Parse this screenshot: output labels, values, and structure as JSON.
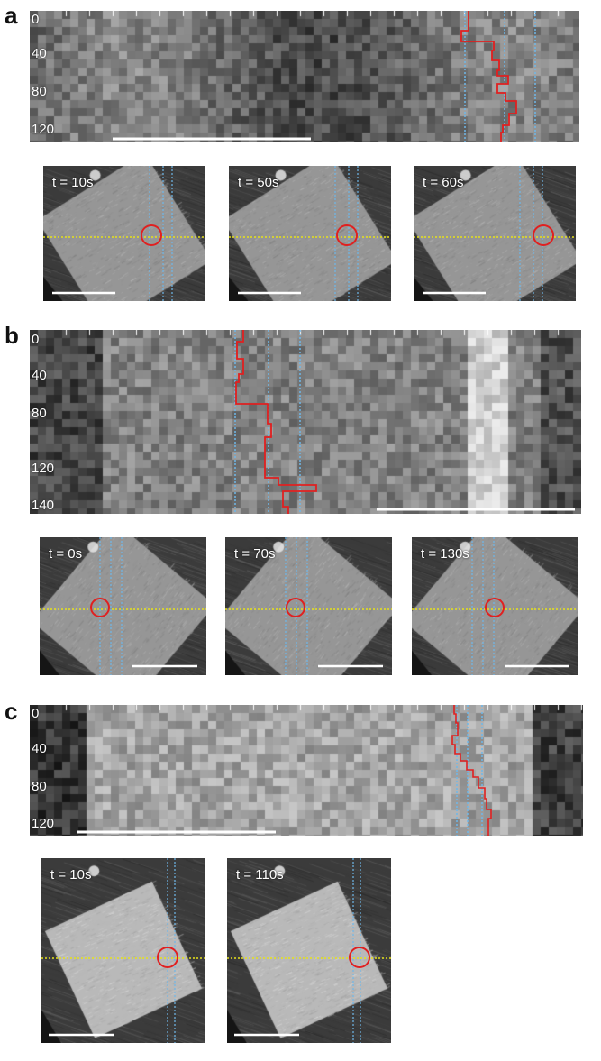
{
  "panels": [
    {
      "letter": "a",
      "kymograph": {
        "y_ticks": [
          "0",
          "40",
          "80",
          "120"
        ],
        "trace": [
          [
            0.91,
            0.0
          ],
          [
            0.91,
            0.08
          ],
          [
            0.88,
            0.08
          ],
          [
            0.88,
            0.17
          ],
          [
            0.97,
            0.17
          ],
          [
            0.97,
            0.3
          ],
          [
            0.95,
            0.3
          ],
          [
            0.95,
            0.43
          ],
          [
            0.96,
            0.43
          ],
          [
            0.96,
            0.53
          ],
          [
            0.93,
            0.53
          ],
          [
            0.93,
            0.56
          ],
          [
            1.0,
            0.56
          ],
          [
            1.0,
            0.65
          ],
          [
            0.98,
            0.65
          ],
          [
            0.98,
            0.76
          ],
          [
            0.95,
            0.76
          ],
          [
            0.95,
            0.9
          ],
          [
            0.98,
            0.9
          ],
          [
            0.98,
            1.0
          ],
          [
            0.94,
            1.0
          ]
        ],
        "vlines": [
          0.88,
          0.96,
          1.0
        ]
      },
      "snapshots": [
        {
          "time": "t = 10s"
        },
        {
          "time": "t = 50s"
        },
        {
          "time": "t = 60s"
        }
      ]
    },
    {
      "letter": "b",
      "kymograph": {
        "y_ticks": [
          "0",
          "40",
          "80",
          "120",
          "140"
        ],
        "trace": [],
        "vlines": []
      },
      "snapshots": [
        {
          "time": "t = 0s"
        },
        {
          "time": "t = 70s"
        },
        {
          "time": "t = 130s"
        }
      ]
    },
    {
      "letter": "c",
      "kymograph": {
        "y_ticks": [
          "0",
          "40",
          "80",
          "120"
        ],
        "trace": [],
        "vlines": []
      },
      "snapshots": [
        {
          "time": "t = 10s"
        },
        {
          "time": "t = 110s"
        }
      ]
    }
  ],
  "colors": {
    "trace": "#e02020",
    "guide_blue": "#6fb7e8",
    "guide_yellow": "#e6e21a",
    "scalebar": "#ffffff"
  }
}
